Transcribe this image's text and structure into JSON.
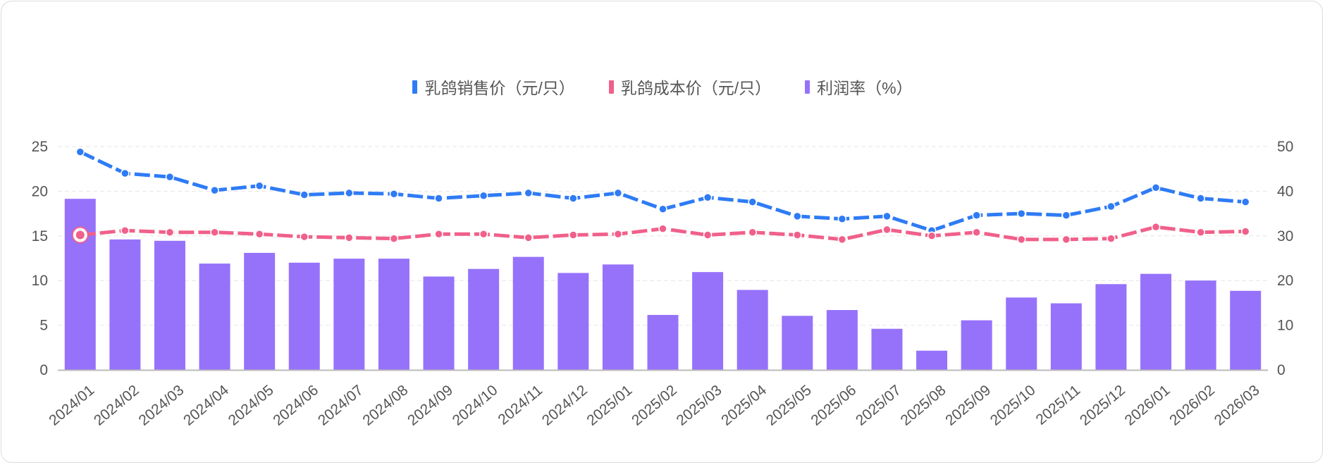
{
  "chart_data": {
    "type": "bar+line",
    "title": "",
    "categories": [
      "2024/01",
      "2024/02",
      "2024/03",
      "2024/04",
      "2024/05",
      "2024/06",
      "2024/07",
      "2024/08",
      "2024/09",
      "2024/10",
      "2024/11",
      "2024/12",
      "2025/01",
      "2025/02",
      "2025/03",
      "2025/04",
      "2025/05",
      "2025/06",
      "2025/07",
      "2025/08",
      "2025/09",
      "2025/10",
      "2025/11",
      "2025/12",
      "2026/01",
      "2026/02",
      "2026/03"
    ],
    "y_left": {
      "range": [
        0,
        25
      ],
      "ticks": [
        "0",
        "5",
        "10",
        "15",
        "20",
        "25"
      ]
    },
    "y_right": {
      "range": [
        0,
        50
      ],
      "ticks": [
        "0",
        "10",
        "20",
        "30",
        "40",
        "50"
      ]
    },
    "grid": true,
    "legend_position": "top-center",
    "series": [
      {
        "name": "乳鸽销售价（元/只）",
        "type": "line",
        "axis": "left",
        "color": "#2F7BF5",
        "values": [
          24.4,
          22.0,
          21.6,
          20.1,
          20.6,
          19.6,
          19.8,
          19.7,
          19.2,
          19.5,
          19.8,
          19.2,
          19.8,
          18.0,
          19.3,
          18.8,
          17.2,
          16.9,
          17.2,
          15.6,
          17.3,
          17.5,
          17.3,
          18.3,
          20.4,
          19.2,
          18.8
        ]
      },
      {
        "name": "乳鸽成本价（元/只）",
        "type": "line",
        "axis": "left",
        "color": "#F0608A",
        "values": [
          15.1,
          15.6,
          15.4,
          15.4,
          15.2,
          14.9,
          14.8,
          14.7,
          15.2,
          15.2,
          14.8,
          15.1,
          15.2,
          15.8,
          15.1,
          15.4,
          15.1,
          14.6,
          15.7,
          15.0,
          15.4,
          14.6,
          14.6,
          14.7,
          16.0,
          15.4,
          15.5
        ]
      },
      {
        "name": "利润率（%）",
        "type": "bar",
        "axis": "right",
        "color": "#9672FB",
        "values": [
          38.3,
          29.2,
          28.9,
          23.8,
          26.2,
          24.0,
          24.9,
          24.9,
          20.9,
          22.6,
          25.3,
          21.7,
          23.6,
          12.3,
          21.9,
          17.9,
          12.1,
          13.4,
          9.2,
          4.3,
          11.1,
          16.2,
          14.9,
          19.2,
          21.5,
          20.0,
          17.7
        ]
      }
    ]
  }
}
